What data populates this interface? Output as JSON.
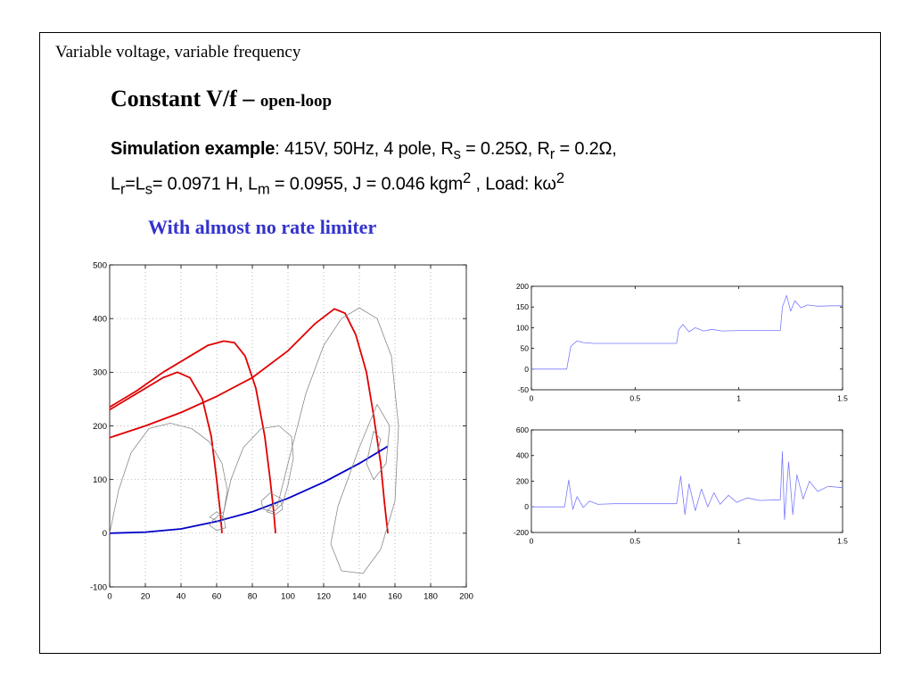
{
  "slide": {
    "header": "Variable voltage, variable frequency",
    "title_main": "Constant V/f –",
    "title_small": "open-loop",
    "sim_label": "Simulation example",
    "sim_line1_rest": ": 415V, 50Hz, 4 pole, R",
    "sim_line1_rs_sub": "s",
    "sim_line1_rs_val": " = 0.25Ω, R",
    "sim_line1_rr_sub": "r",
    "sim_line1_rr_val": " = 0.2Ω,",
    "sim_line2_a": "L",
    "sim_line2_a_sub": "r",
    "sim_line2_b": "=L",
    "sim_line2_b_sub": "s",
    "sim_line2_c": "= 0.0971 H, L",
    "sim_line2_c_sub": "m",
    "sim_line2_d": " = 0.0955, J = 0.046 kgm",
    "sim_line2_d_sup": "2",
    "sim_line2_e": " , Load: kω",
    "sim_line2_e_sup": "2",
    "subtitle": "With almost no rate limiter"
  },
  "colors": {
    "red": "#e00000",
    "blue": "#0000c8",
    "gray": "#8a8a8a",
    "light_blue": "#7a7aff",
    "subtitle": "#3333cc"
  },
  "chart_data": [
    {
      "type": "line",
      "xlim": [
        0,
        200
      ],
      "ylim": [
        -100,
        500
      ],
      "xticks": [
        0,
        20,
        40,
        60,
        80,
        100,
        120,
        140,
        160,
        180,
        200
      ],
      "yticks": [
        -100,
        0,
        100,
        200,
        300,
        400,
        500
      ],
      "grid": true,
      "series": [
        {
          "color": "red",
          "points": [
            [
              0,
              230
            ],
            [
              10,
              250
            ],
            [
              20,
              270
            ],
            [
              30,
              290
            ],
            [
              38,
              300
            ],
            [
              45,
              290
            ],
            [
              52,
              250
            ],
            [
              57,
              180
            ],
            [
              60,
              100
            ],
            [
              62,
              40
            ],
            [
              63,
              0
            ]
          ]
        },
        {
          "color": "red",
          "points": [
            [
              0,
              235
            ],
            [
              15,
              265
            ],
            [
              30,
              300
            ],
            [
              45,
              330
            ],
            [
              55,
              350
            ],
            [
              64,
              358
            ],
            [
              70,
              355
            ],
            [
              76,
              330
            ],
            [
              82,
              270
            ],
            [
              87,
              180
            ],
            [
              90,
              100
            ],
            [
              92,
              40
            ],
            [
              93,
              0
            ]
          ]
        },
        {
          "color": "red",
          "points": [
            [
              0,
              178
            ],
            [
              20,
              200
            ],
            [
              40,
              225
            ],
            [
              60,
              255
            ],
            [
              80,
              290
            ],
            [
              100,
              340
            ],
            [
              115,
              390
            ],
            [
              126,
              418
            ],
            [
              132,
              410
            ],
            [
              138,
              370
            ],
            [
              144,
              300
            ],
            [
              148,
              220
            ],
            [
              152,
              130
            ],
            [
              154,
              60
            ],
            [
              156,
              0
            ]
          ]
        },
        {
          "color": "blue",
          "points": [
            [
              0,
              0
            ],
            [
              20,
              2
            ],
            [
              40,
              8
            ],
            [
              60,
              22
            ],
            [
              80,
              40
            ],
            [
              100,
              65
            ],
            [
              120,
              95
            ],
            [
              140,
              130
            ],
            [
              156,
              162
            ]
          ]
        },
        {
          "color": "gray",
          "points": [
            [
              0,
              0
            ],
            [
              5,
              80
            ],
            [
              12,
              150
            ],
            [
              22,
              195
            ],
            [
              34,
              205
            ],
            [
              46,
              195
            ],
            [
              56,
              170
            ],
            [
              63,
              130
            ],
            [
              66,
              80
            ],
            [
              64,
              40
            ],
            [
              58,
              25
            ],
            [
              56,
              15
            ],
            [
              60,
              5
            ],
            [
              65,
              10
            ],
            [
              64,
              30
            ],
            [
              60,
              40
            ],
            [
              56,
              30
            ],
            [
              62,
              20
            ],
            [
              63,
              25
            ]
          ]
        },
        {
          "color": "gray",
          "points": [
            [
              63,
              25
            ],
            [
              68,
              100
            ],
            [
              75,
              160
            ],
            [
              85,
              195
            ],
            [
              95,
              200
            ],
            [
              102,
              180
            ],
            [
              103,
              140
            ],
            [
              100,
              90
            ],
            [
              97,
              55
            ],
            [
              92,
              40
            ],
            [
              86,
              45
            ],
            [
              85,
              60
            ],
            [
              90,
              75
            ],
            [
              96,
              65
            ],
            [
              97,
              45
            ],
            [
              93,
              35
            ],
            [
              88,
              40
            ],
            [
              92,
              55
            ],
            [
              94,
              50
            ]
          ]
        },
        {
          "color": "gray",
          "points": [
            [
              94,
              50
            ],
            [
              100,
              130
            ],
            [
              110,
              260
            ],
            [
              120,
              350
            ],
            [
              130,
              400
            ],
            [
              140,
              420
            ],
            [
              150,
              400
            ],
            [
              158,
              330
            ],
            [
              162,
              200
            ],
            [
              160,
              60
            ],
            [
              152,
              -30
            ],
            [
              142,
              -75
            ],
            [
              130,
              -70
            ],
            [
              124,
              -20
            ],
            [
              128,
              50
            ],
            [
              140,
              160
            ],
            [
              150,
              240
            ],
            [
              157,
              200
            ],
            [
              155,
              130
            ],
            [
              148,
              100
            ],
            [
              144,
              130
            ],
            [
              148,
              190
            ],
            [
              152,
              175
            ],
            [
              150,
              150
            ]
          ]
        }
      ]
    },
    {
      "type": "line",
      "xlim": [
        0,
        1.5
      ],
      "ylim": [
        -50,
        200
      ],
      "xticks": [
        0,
        0.5,
        1,
        1.5
      ],
      "yticks": [
        -50,
        0,
        50,
        100,
        150,
        200
      ],
      "grid": false,
      "series": [
        {
          "color": "light_blue",
          "points": [
            [
              0,
              0
            ],
            [
              0.17,
              0
            ],
            [
              0.19,
              55
            ],
            [
              0.22,
              68
            ],
            [
              0.25,
              64
            ],
            [
              0.3,
              62
            ],
            [
              0.4,
              62
            ],
            [
              0.5,
              62
            ],
            [
              0.6,
              62
            ],
            [
              0.7,
              62
            ],
            [
              0.71,
              95
            ],
            [
              0.73,
              108
            ],
            [
              0.76,
              90
            ],
            [
              0.79,
              100
            ],
            [
              0.83,
              92
            ],
            [
              0.87,
              96
            ],
            [
              0.92,
              92
            ],
            [
              1.0,
              93
            ],
            [
              1.1,
              93
            ],
            [
              1.2,
              93
            ],
            [
              1.21,
              150
            ],
            [
              1.23,
              178
            ],
            [
              1.25,
              140
            ],
            [
              1.27,
              165
            ],
            [
              1.3,
              148
            ],
            [
              1.33,
              155
            ],
            [
              1.38,
              152
            ],
            [
              1.45,
              153
            ],
            [
              1.5,
              153
            ]
          ]
        }
      ]
    },
    {
      "type": "line",
      "xlim": [
        0,
        1.5
      ],
      "ylim": [
        -200,
        600
      ],
      "xticks": [
        0,
        0.5,
        1,
        1.5
      ],
      "yticks": [
        -200,
        0,
        200,
        400,
        600
      ],
      "grid": false,
      "series": [
        {
          "color": "light_blue",
          "points": [
            [
              0,
              0
            ],
            [
              0.16,
              0
            ],
            [
              0.18,
              210
            ],
            [
              0.2,
              -20
            ],
            [
              0.22,
              80
            ],
            [
              0.25,
              -5
            ],
            [
              0.28,
              45
            ],
            [
              0.32,
              20
            ],
            [
              0.4,
              25
            ],
            [
              0.5,
              25
            ],
            [
              0.6,
              25
            ],
            [
              0.7,
              25
            ],
            [
              0.72,
              240
            ],
            [
              0.74,
              -60
            ],
            [
              0.76,
              180
            ],
            [
              0.79,
              -30
            ],
            [
              0.82,
              140
            ],
            [
              0.85,
              0
            ],
            [
              0.88,
              110
            ],
            [
              0.91,
              20
            ],
            [
              0.95,
              90
            ],
            [
              0.99,
              35
            ],
            [
              1.04,
              70
            ],
            [
              1.1,
              50
            ],
            [
              1.2,
              55
            ],
            [
              1.21,
              430
            ],
            [
              1.22,
              -100
            ],
            [
              1.24,
              350
            ],
            [
              1.26,
              -60
            ],
            [
              1.28,
              250
            ],
            [
              1.31,
              60
            ],
            [
              1.34,
              200
            ],
            [
              1.38,
              120
            ],
            [
              1.43,
              160
            ],
            [
              1.5,
              150
            ]
          ]
        }
      ]
    }
  ]
}
